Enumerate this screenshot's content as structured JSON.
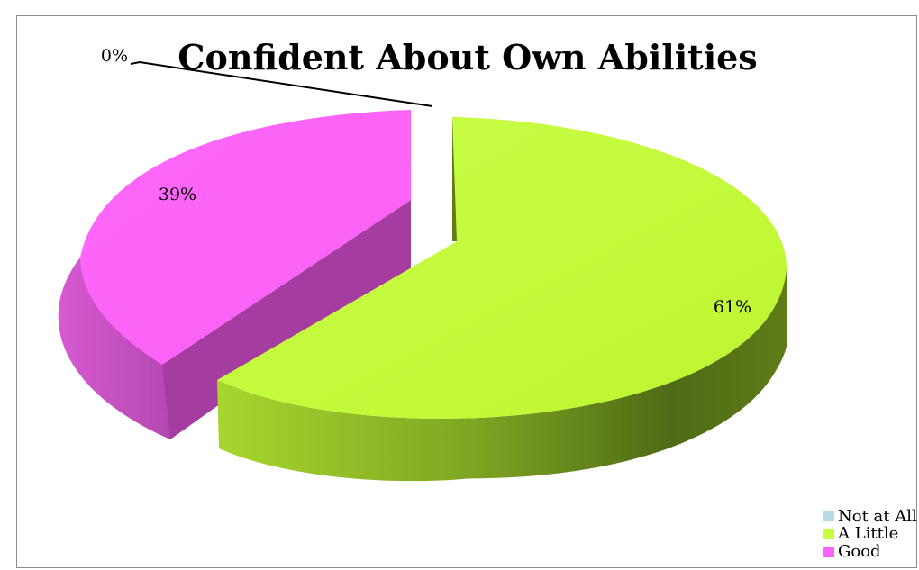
{
  "chart_data": {
    "type": "pie",
    "title": "Confident About Own Abilities",
    "categories": [
      "Not at All",
      "A Little",
      "Good"
    ],
    "values": [
      0,
      61,
      39
    ],
    "data_labels": [
      "0%",
      "61%",
      "39%"
    ],
    "colors": {
      "Not at All": {
        "top": "#b4dbe8"
      },
      "A Little": {
        "top": "#c6ff3f",
        "side_light": "#a2d12c",
        "side_dark": "#4d6514"
      },
      "Good": {
        "top": "#ff62fb",
        "side_light": "#d45ad0",
        "side_dark": "#a53c9f"
      }
    },
    "style": "3d-exploded",
    "legend_position": "bottom-right"
  }
}
